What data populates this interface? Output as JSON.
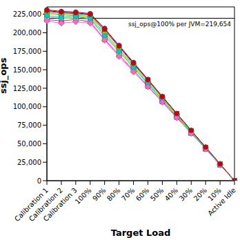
{
  "chart_data": {
    "type": "line",
    "x_label": "Target Load",
    "y_label": "ssj_ops",
    "categories": [
      "Calibration 1",
      "Calibration 2",
      "Calibration 3",
      "100%",
      "90%",
      "80%",
      "70%",
      "60%",
      "50%",
      "40%",
      "30%",
      "20%",
      "10%",
      "Active Idle"
    ],
    "series": [
      {
        "color": "#800080",
        "marker": "circle",
        "values": [
          231000,
          229000,
          228000,
          226000,
          206000,
          183000,
          160000,
          137000,
          114000,
          91000,
          68000,
          45500,
          22800,
          0
        ]
      },
      {
        "color": "#333333",
        "marker": "square",
        "values": [
          229000,
          227000,
          226000,
          224000,
          203000,
          181000,
          158000,
          136000,
          113000,
          90500,
          67500,
          45000,
          22500,
          0
        ]
      },
      {
        "color": "#33cc33",
        "marker": "diamond",
        "values": [
          227000,
          225000,
          224000,
          222000,
          200000,
          178000,
          156000,
          134000,
          111500,
          89500,
          67000,
          44800,
          22400,
          0
        ]
      },
      {
        "color": "#cccc00",
        "marker": "square",
        "values": [
          225000,
          224000,
          223000,
          220000,
          198000,
          176000,
          154000,
          132000,
          110000,
          88000,
          66000,
          44000,
          22000,
          0
        ]
      },
      {
        "color": "#ff00ff",
        "marker": "square",
        "values": [
          218000,
          216000,
          218000,
          215000,
          191000,
          170000,
          149000,
          128000,
          107000,
          86000,
          64500,
          43000,
          21500,
          0
        ]
      },
      {
        "color": "#99ff66",
        "marker": "square",
        "values": [
          221000,
          220000,
          219000,
          217000,
          194000,
          173000,
          151000,
          130000,
          108500,
          87000,
          65000,
          43500,
          21800,
          0
        ]
      },
      {
        "color": "#00cccc",
        "marker": "circle",
        "values": [
          223000,
          221000,
          222000,
          219000,
          196000,
          175000,
          153000,
          131000,
          109000,
          87500,
          65500,
          43700,
          21900,
          0
        ]
      },
      {
        "color": "#ff66cc",
        "marker": "diamond",
        "values": [
          216000,
          213000,
          215000,
          213000,
          190000,
          168000,
          147000,
          127000,
          106000,
          85000,
          64000,
          42800,
          21300,
          0
        ]
      },
      {
        "color": "#cc0000",
        "marker": "circle",
        "values": [
          230000,
          228000,
          227000,
          225000,
          205000,
          182000,
          159000,
          136500,
          113500,
          90800,
          67800,
          45200,
          22700,
          0
        ]
      }
    ],
    "ylim": [
      0,
      235000
    ],
    "yticks": [
      0,
      {
        "value": 25000,
        "label": "25,000"
      },
      {
        "value": 50000,
        "label": "50,000"
      },
      {
        "value": 75000,
        "label": "75,000"
      },
      {
        "value": 100000,
        "label": "100,000"
      },
      {
        "value": 125000,
        "label": "125,000"
      },
      {
        "value": 150000,
        "label": "150,000"
      },
      {
        "value": 175000,
        "label": "175,000"
      },
      {
        "value": 200000,
        "label": "200,000"
      },
      {
        "value": 225000,
        "label": "225,000"
      }
    ],
    "reference_line": {
      "value": 219654,
      "label": "ssj_ops@100% per JVM=219,654"
    },
    "grid": false
  }
}
